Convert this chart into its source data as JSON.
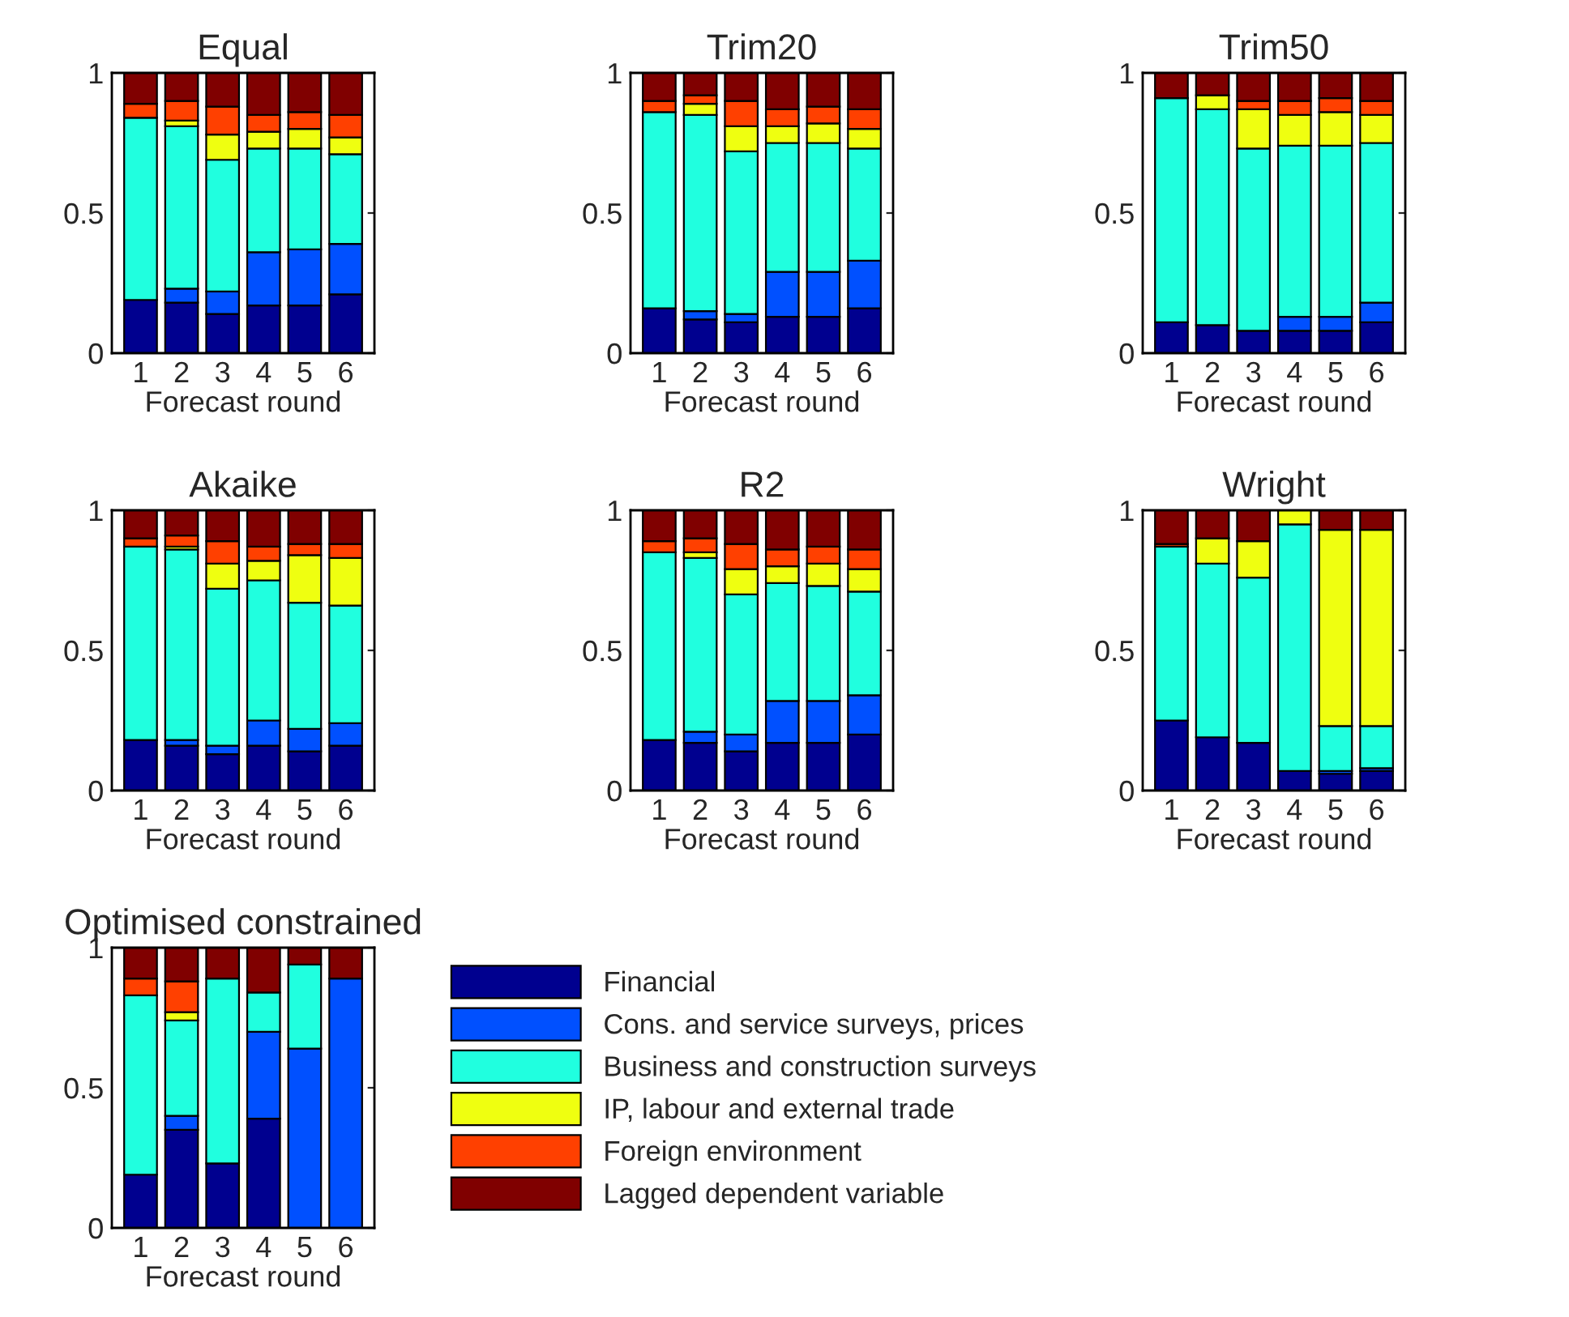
{
  "chart_data": [
    {
      "type": "bar",
      "stacked": true,
      "title": "Equal",
      "xlabel": "Forecast round",
      "categories": [
        "1",
        "2",
        "3",
        "4",
        "5",
        "6"
      ],
      "ylim": [
        0,
        1
      ],
      "yticks": [
        0,
        0.5,
        1
      ],
      "series": [
        {
          "color": "#00008f",
          "values": [
            0.19,
            0.18,
            0.14,
            0.17,
            0.17,
            0.21
          ]
        },
        {
          "color": "#0050ff",
          "values": [
            0,
            0.05,
            0.08,
            0.19,
            0.2,
            0.18
          ]
        },
        {
          "color": "#20ffdf",
          "values": [
            0.65,
            0.58,
            0.47,
            0.37,
            0.36,
            0.32
          ]
        },
        {
          "color": "#efff10",
          "values": [
            0,
            0.02,
            0.09,
            0.06,
            0.07,
            0.06
          ]
        },
        {
          "color": "#ff4000",
          "values": [
            0.05,
            0.07,
            0.1,
            0.06,
            0.06,
            0.08
          ]
        },
        {
          "color": "#800000",
          "values": [
            0.11,
            0.1,
            0.12,
            0.15,
            0.14,
            0.15
          ]
        }
      ]
    },
    {
      "type": "bar",
      "stacked": true,
      "title": "Trim20",
      "xlabel": "Forecast round",
      "categories": [
        "1",
        "2",
        "3",
        "4",
        "5",
        "6"
      ],
      "ylim": [
        0,
        1
      ],
      "yticks": [
        0,
        0.5,
        1
      ],
      "series": [
        {
          "color": "#00008f",
          "values": [
            0.16,
            0.12,
            0.11,
            0.13,
            0.13,
            0.16
          ]
        },
        {
          "color": "#0050ff",
          "values": [
            0,
            0.03,
            0.03,
            0.16,
            0.16,
            0.17
          ]
        },
        {
          "color": "#20ffdf",
          "values": [
            0.7,
            0.7,
            0.58,
            0.46,
            0.46,
            0.4
          ]
        },
        {
          "color": "#efff10",
          "values": [
            0,
            0.04,
            0.09,
            0.06,
            0.07,
            0.07
          ]
        },
        {
          "color": "#ff4000",
          "values": [
            0.04,
            0.03,
            0.09,
            0.06,
            0.06,
            0.07
          ]
        },
        {
          "color": "#800000",
          "values": [
            0.1,
            0.08,
            0.1,
            0.13,
            0.12,
            0.13
          ]
        }
      ]
    },
    {
      "type": "bar",
      "stacked": true,
      "title": "Trim50",
      "xlabel": "Forecast round",
      "categories": [
        "1",
        "2",
        "3",
        "4",
        "5",
        "6"
      ],
      "ylim": [
        0,
        1
      ],
      "yticks": [
        0,
        0.5,
        1
      ],
      "series": [
        {
          "color": "#00008f",
          "values": [
            0.11,
            0.1,
            0.08,
            0.08,
            0.08,
            0.11
          ]
        },
        {
          "color": "#0050ff",
          "values": [
            0,
            0,
            0,
            0.05,
            0.05,
            0.07
          ]
        },
        {
          "color": "#20ffdf",
          "values": [
            0.8,
            0.77,
            0.65,
            0.61,
            0.61,
            0.57
          ]
        },
        {
          "color": "#efff10",
          "values": [
            0,
            0.05,
            0.14,
            0.11,
            0.12,
            0.1
          ]
        },
        {
          "color": "#ff4000",
          "values": [
            0,
            0,
            0.03,
            0.05,
            0.05,
            0.05
          ]
        },
        {
          "color": "#800000",
          "values": [
            0.09,
            0.08,
            0.1,
            0.1,
            0.09,
            0.1
          ]
        }
      ]
    },
    {
      "type": "bar",
      "stacked": true,
      "title": "Akaike",
      "xlabel": "Forecast round",
      "categories": [
        "1",
        "2",
        "3",
        "4",
        "5",
        "6"
      ],
      "ylim": [
        0,
        1
      ],
      "yticks": [
        0,
        0.5,
        1
      ],
      "series": [
        {
          "color": "#00008f",
          "values": [
            0.18,
            0.16,
            0.13,
            0.16,
            0.14,
            0.16
          ]
        },
        {
          "color": "#0050ff",
          "values": [
            0,
            0.02,
            0.03,
            0.09,
            0.08,
            0.08
          ]
        },
        {
          "color": "#20ffdf",
          "values": [
            0.69,
            0.68,
            0.56,
            0.5,
            0.45,
            0.42
          ]
        },
        {
          "color": "#efff10",
          "values": [
            0,
            0.01,
            0.09,
            0.07,
            0.17,
            0.17
          ]
        },
        {
          "color": "#ff4000",
          "values": [
            0.03,
            0.04,
            0.08,
            0.05,
            0.04,
            0.05
          ]
        },
        {
          "color": "#800000",
          "values": [
            0.1,
            0.09,
            0.11,
            0.13,
            0.12,
            0.12
          ]
        }
      ]
    },
    {
      "type": "bar",
      "stacked": true,
      "title": "R2",
      "xlabel": "Forecast round",
      "categories": [
        "1",
        "2",
        "3",
        "4",
        "5",
        "6"
      ],
      "ylim": [
        0,
        1
      ],
      "yticks": [
        0,
        0.5,
        1
      ],
      "series": [
        {
          "color": "#00008f",
          "values": [
            0.18,
            0.17,
            0.14,
            0.17,
            0.17,
            0.2
          ]
        },
        {
          "color": "#0050ff",
          "values": [
            0,
            0.04,
            0.06,
            0.15,
            0.15,
            0.14
          ]
        },
        {
          "color": "#20ffdf",
          "values": [
            0.67,
            0.62,
            0.5,
            0.42,
            0.41,
            0.37
          ]
        },
        {
          "color": "#efff10",
          "values": [
            0,
            0.02,
            0.09,
            0.06,
            0.08,
            0.08
          ]
        },
        {
          "color": "#ff4000",
          "values": [
            0.04,
            0.05,
            0.09,
            0.06,
            0.06,
            0.07
          ]
        },
        {
          "color": "#800000",
          "values": [
            0.11,
            0.1,
            0.12,
            0.14,
            0.13,
            0.14
          ]
        }
      ]
    },
    {
      "type": "bar",
      "stacked": true,
      "title": "Wright",
      "xlabel": "Forecast round",
      "categories": [
        "1",
        "2",
        "3",
        "4",
        "5",
        "6"
      ],
      "ylim": [
        0,
        1
      ],
      "yticks": [
        0,
        0.5,
        1
      ],
      "series": [
        {
          "color": "#00008f",
          "values": [
            0.25,
            0.19,
            0.17,
            0.07,
            0.06,
            0.07
          ]
        },
        {
          "color": "#0050ff",
          "values": [
            0,
            0,
            0,
            0,
            0.01,
            0.01
          ]
        },
        {
          "color": "#20ffdf",
          "values": [
            0.62,
            0.62,
            0.59,
            0.88,
            0.16,
            0.15
          ]
        },
        {
          "color": "#efff10",
          "values": [
            0,
            0.09,
            0.13,
            0.05,
            0.7,
            0.7
          ]
        },
        {
          "color": "#ff4000",
          "values": [
            0.01,
            0,
            0,
            0,
            0,
            0
          ]
        },
        {
          "color": "#800000",
          "values": [
            0.12,
            0.1,
            0.11,
            0,
            0.07,
            0.07
          ]
        }
      ]
    },
    {
      "type": "bar",
      "stacked": true,
      "title": "Optimised constrained",
      "xlabel": "Forecast round",
      "categories": [
        "1",
        "2",
        "3",
        "4",
        "5",
        "6"
      ],
      "ylim": [
        0,
        1
      ],
      "yticks": [
        0,
        0.5,
        1
      ],
      "legend": "right",
      "series": [
        {
          "name": "Financial",
          "color": "#00008f",
          "values": [
            0.19,
            0.35,
            0.23,
            0.39,
            0,
            0
          ]
        },
        {
          "name": "Cons. and service surveys, prices",
          "color": "#0050ff",
          "values": [
            0,
            0.05,
            0,
            0.31,
            0.64,
            0.89
          ]
        },
        {
          "name": "Business and construction surveys",
          "color": "#20ffdf",
          "values": [
            0.64,
            0.34,
            0.66,
            0.14,
            0.3,
            0
          ]
        },
        {
          "name": "IP, labour and external trade",
          "color": "#efff10",
          "values": [
            0,
            0.03,
            0,
            0,
            0,
            0
          ]
        },
        {
          "name": "Foreign environment",
          "color": "#ff4000",
          "values": [
            0.06,
            0.11,
            0,
            0,
            0,
            0
          ]
        },
        {
          "name": "Lagged dependent variable",
          "color": "#800000",
          "values": [
            0.11,
            0.12,
            0.11,
            0.16,
            0.06,
            0.11
          ]
        }
      ]
    }
  ]
}
